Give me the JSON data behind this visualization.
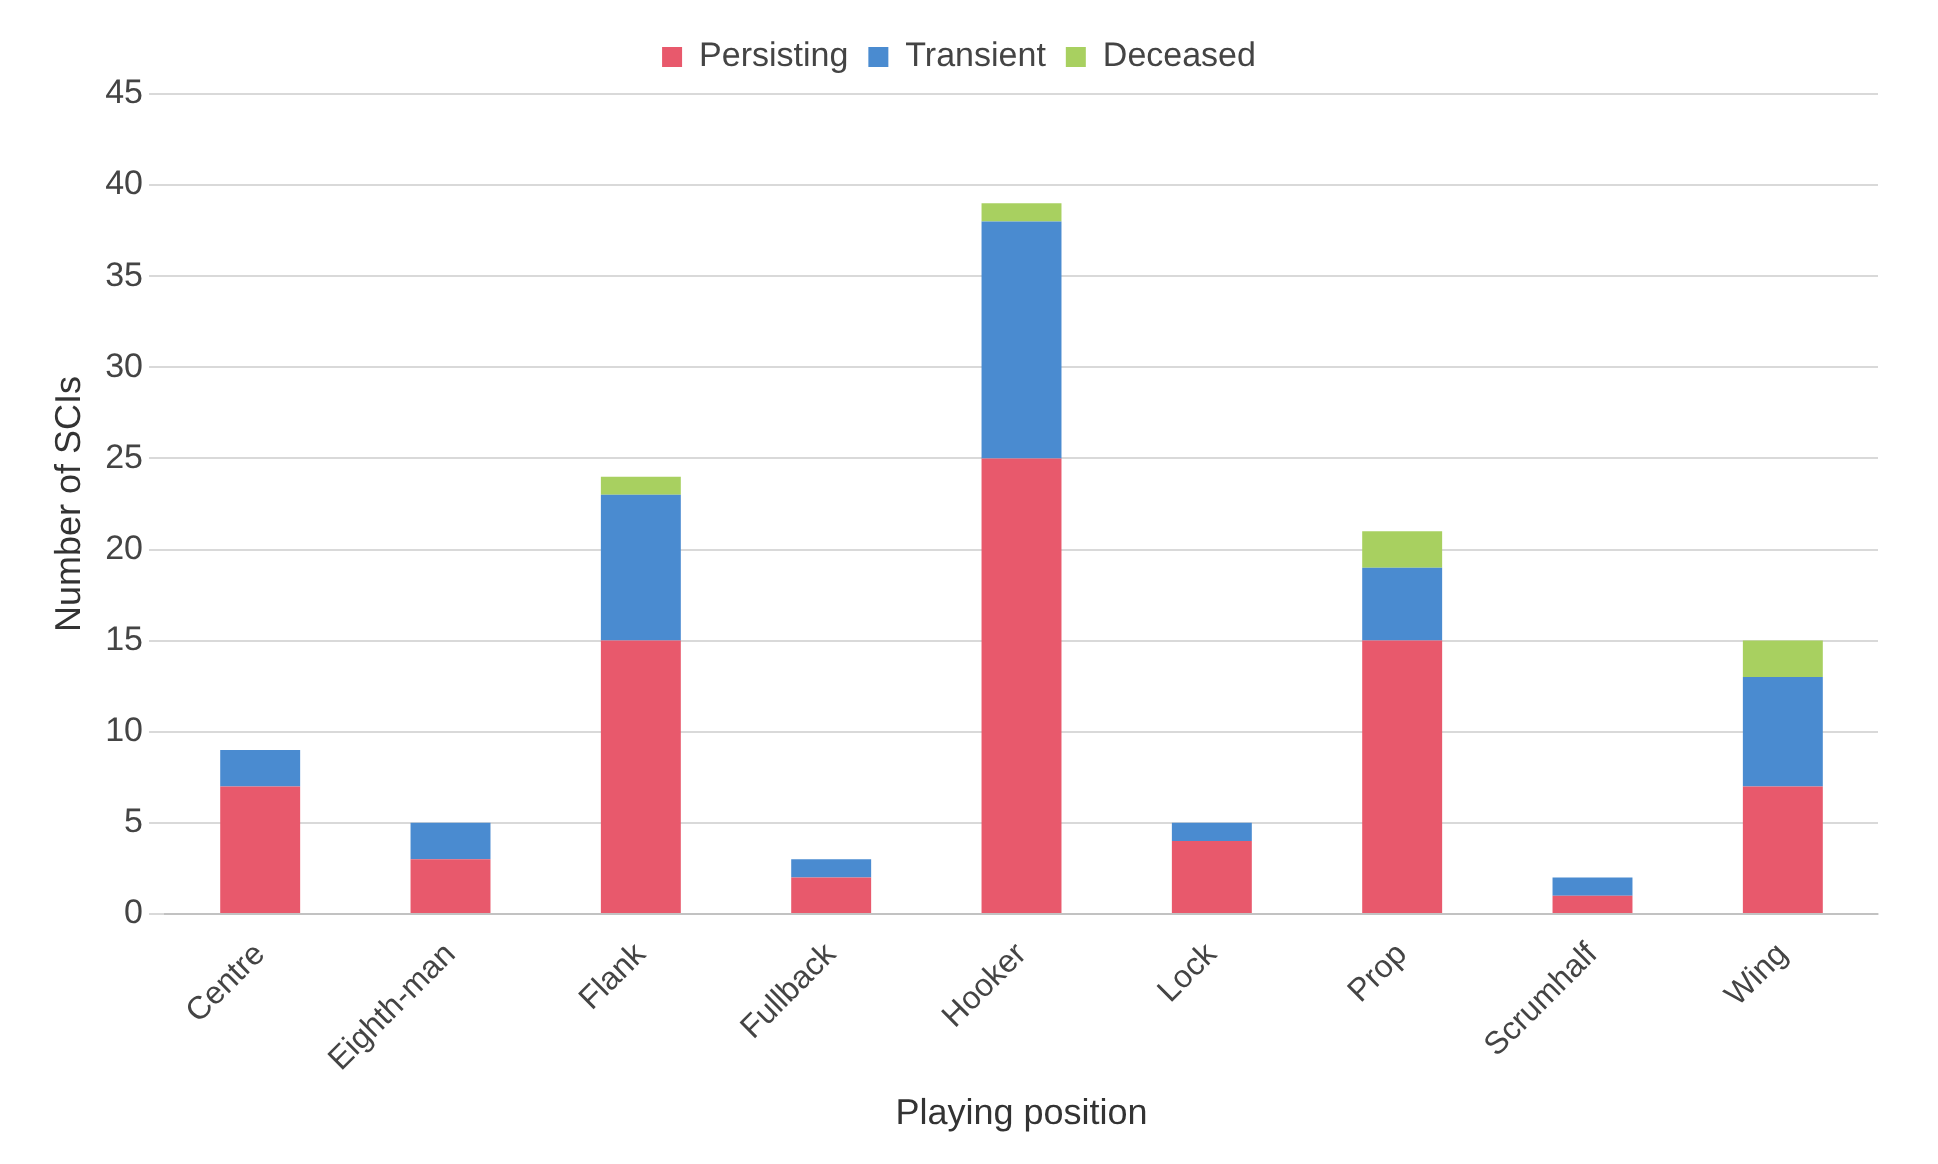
{
  "chart_data": {
    "type": "bar",
    "stacked": true,
    "xlabel": "Playing position",
    "ylabel": "Number of SCIs",
    "categories": [
      "Centre",
      "Eighth-man",
      "Flank",
      "Fullback",
      "Hooker",
      "Lock",
      "Prop",
      "Scrumhalf",
      "Wing"
    ],
    "series": [
      {
        "name": "Persisting",
        "color": "#e8596c",
        "values": [
          7,
          3,
          15,
          2,
          25,
          4,
          15,
          1,
          7
        ]
      },
      {
        "name": "Transient",
        "color": "#4a8bd0",
        "values": [
          2,
          2,
          8,
          1,
          13,
          1,
          4,
          1,
          6
        ]
      },
      {
        "name": "Deceased",
        "color": "#a8d060",
        "values": [
          0,
          0,
          1,
          0,
          1,
          0,
          2,
          0,
          2
        ]
      }
    ],
    "ylim": [
      0,
      45
    ],
    "yticks": [
      0,
      5,
      10,
      15,
      20,
      25,
      30,
      35,
      40,
      45
    ],
    "grid": "y",
    "legend": "top"
  }
}
